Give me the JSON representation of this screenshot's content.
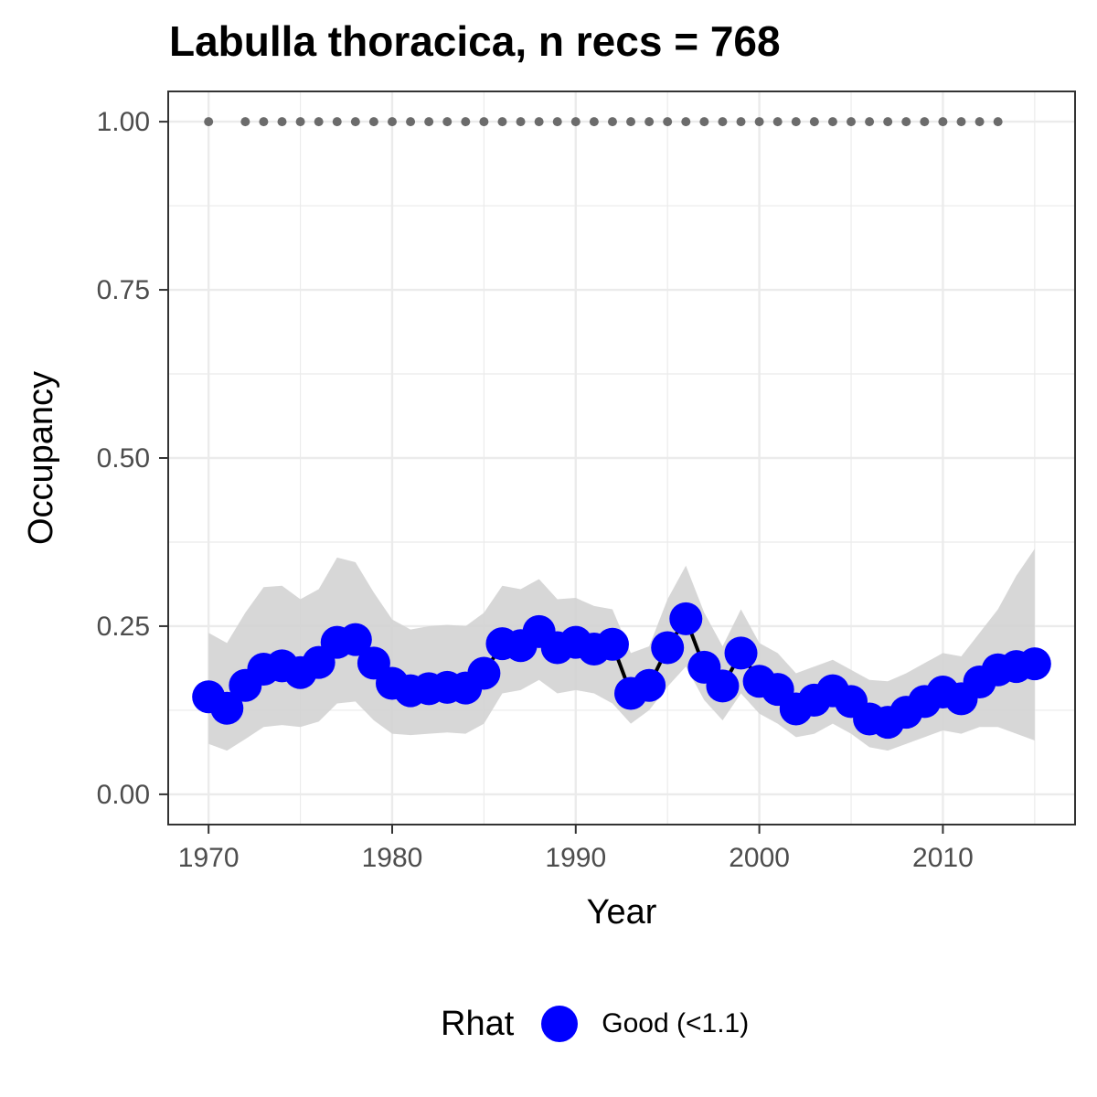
{
  "chart_data": {
    "type": "line",
    "title": "Labulla thoracica, n recs = 768",
    "xlabel": "Year",
    "ylabel": "Occupancy",
    "xlim": [
      1967.8,
      2017.2
    ],
    "ylim": [
      -0.045,
      1.045
    ],
    "x_ticks": [
      {
        "value": 1970,
        "label": "1970"
      },
      {
        "value": 1980,
        "label": "1980"
      },
      {
        "value": 1990,
        "label": "1990"
      },
      {
        "value": 2000,
        "label": "2000"
      },
      {
        "value": 2010,
        "label": "2010"
      }
    ],
    "y_ticks": [
      {
        "value": 0,
        "label": "0.00"
      },
      {
        "value": 0.25,
        "label": "0.25"
      },
      {
        "value": 0.5,
        "label": "0.50"
      },
      {
        "value": 0.75,
        "label": "0.75"
      },
      {
        "value": 1,
        "label": "1.00"
      }
    ],
    "grid": true,
    "legend": {
      "position": "bottom",
      "title": "Rhat",
      "entries": [
        {
          "label": "Good (<1.1)",
          "color": "#0000ff"
        }
      ]
    },
    "colors": {
      "points": "#0000ff",
      "line": "#000000",
      "ribbon": "#d3d3d3",
      "records": "#6b6b6b",
      "grid": "#ebebeb",
      "panel_border": "#333333"
    },
    "series": [
      {
        "name": "Good (<1.1)",
        "x": [
          1970,
          1971,
          1972,
          1973,
          1974,
          1975,
          1976,
          1977,
          1978,
          1979,
          1980,
          1981,
          1982,
          1983,
          1984,
          1985,
          1986,
          1987,
          1988,
          1989,
          1990,
          1991,
          1992,
          1993,
          1994,
          1995,
          1996,
          1997,
          1998,
          1999,
          2000,
          2001,
          2002,
          2003,
          2004,
          2005,
          2006,
          2007,
          2008,
          2009,
          2010,
          2011,
          2012,
          2013,
          2014,
          2015
        ],
        "y": [
          0.145,
          0.128,
          0.162,
          0.186,
          0.191,
          0.181,
          0.196,
          0.226,
          0.23,
          0.195,
          0.165,
          0.154,
          0.157,
          0.159,
          0.158,
          0.18,
          0.224,
          0.221,
          0.242,
          0.218,
          0.226,
          0.216,
          0.223,
          0.15,
          0.162,
          0.218,
          0.261,
          0.189,
          0.161,
          0.21,
          0.168,
          0.156,
          0.127,
          0.14,
          0.154,
          0.138,
          0.112,
          0.107,
          0.122,
          0.138,
          0.152,
          0.142,
          0.167,
          0.185,
          0.19,
          0.194
        ],
        "lower": [
          0.075,
          0.065,
          0.082,
          0.1,
          0.103,
          0.1,
          0.108,
          0.135,
          0.138,
          0.11,
          0.09,
          0.088,
          0.09,
          0.092,
          0.09,
          0.105,
          0.15,
          0.155,
          0.17,
          0.15,
          0.155,
          0.15,
          0.135,
          0.105,
          0.125,
          0.16,
          0.19,
          0.14,
          0.11,
          0.15,
          0.12,
          0.105,
          0.085,
          0.09,
          0.105,
          0.09,
          0.07,
          0.065,
          0.075,
          0.085,
          0.095,
          0.09,
          0.1,
          0.1,
          0.09,
          0.08
        ],
        "upper": [
          0.24,
          0.225,
          0.27,
          0.308,
          0.31,
          0.29,
          0.305,
          0.352,
          0.345,
          0.3,
          0.26,
          0.245,
          0.25,
          0.252,
          0.25,
          0.27,
          0.31,
          0.305,
          0.32,
          0.29,
          0.292,
          0.28,
          0.275,
          0.21,
          0.22,
          0.29,
          0.34,
          0.27,
          0.22,
          0.275,
          0.225,
          0.21,
          0.18,
          0.19,
          0.2,
          0.185,
          0.17,
          0.168,
          0.18,
          0.195,
          0.21,
          0.205,
          0.24,
          0.275,
          0.325,
          0.365
        ]
      },
      {
        "name": "records",
        "x": [
          1970,
          1972,
          1973,
          1974,
          1975,
          1976,
          1977,
          1978,
          1979,
          1980,
          1981,
          1982,
          1983,
          1984,
          1985,
          1986,
          1987,
          1988,
          1989,
          1990,
          1991,
          1992,
          1993,
          1994,
          1995,
          1996,
          1997,
          1998,
          1999,
          2000,
          2001,
          2002,
          2003,
          2004,
          2005,
          2006,
          2007,
          2008,
          2009,
          2010,
          2011,
          2012,
          2013
        ],
        "y": [
          1,
          1,
          1,
          1,
          1,
          1,
          1,
          1,
          1,
          1,
          1,
          1,
          1,
          1,
          1,
          1,
          1,
          1,
          1,
          1,
          1,
          1,
          1,
          1,
          1,
          1,
          1,
          1,
          1,
          1,
          1,
          1,
          1,
          1,
          1,
          1,
          1,
          1,
          1,
          1,
          1,
          1,
          1
        ]
      }
    ]
  }
}
